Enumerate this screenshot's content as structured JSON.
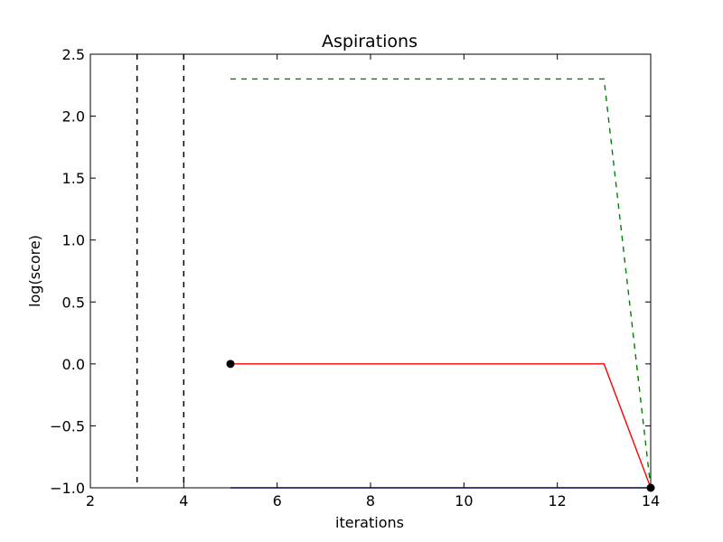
{
  "chart_data": {
    "type": "line",
    "title": "Aspirations",
    "xlabel": "iterations",
    "ylabel": "log(score)",
    "xlim": [
      2,
      14
    ],
    "ylim": [
      -1.0,
      2.5
    ],
    "xticks": [
      2,
      4,
      6,
      8,
      10,
      12,
      14
    ],
    "xtick_labels": [
      "2",
      "4",
      "6",
      "8",
      "10",
      "12",
      "14"
    ],
    "yticks": [
      -1.0,
      -0.5,
      0.0,
      0.5,
      1.0,
      1.5,
      2.0,
      2.5
    ],
    "ytick_labels": [
      "−1.0",
      "−0.5",
      "0.0",
      "0.5",
      "1.0",
      "1.5",
      "2.0",
      "2.5"
    ],
    "grid": false,
    "legend": "none",
    "series": [
      {
        "style": "solid",
        "color": "#ff0000",
        "x": [
          5,
          13,
          14
        ],
        "y": [
          0.0,
          0.0,
          -1.0
        ]
      },
      {
        "style": "dashed",
        "color": "#008000",
        "x": [
          5,
          13,
          14
        ],
        "y": [
          2.3,
          2.3,
          -1.0
        ]
      },
      {
        "style": "solid",
        "color": "#0000ff",
        "x": [
          5,
          14
        ],
        "y": [
          -1.0,
          -1.0
        ]
      }
    ],
    "vlines": [
      {
        "x": 3,
        "style": "dashed",
        "color": "#000000"
      },
      {
        "x": 4,
        "style": "dashed",
        "color": "#000000"
      }
    ],
    "markers": [
      {
        "x": 5,
        "y": 0.0,
        "color": "#000000"
      },
      {
        "x": 14,
        "y": -1.0,
        "color": "#000000"
      }
    ]
  }
}
